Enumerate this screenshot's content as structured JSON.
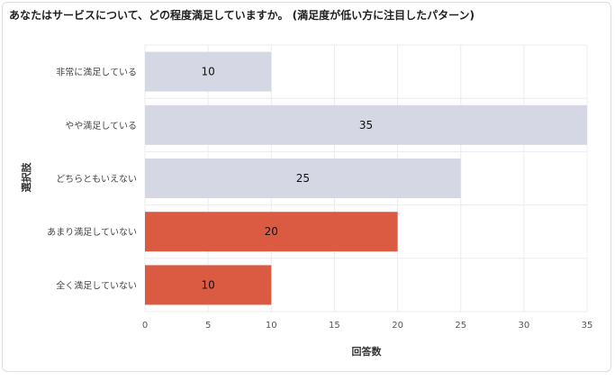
{
  "chart_data": {
    "type": "bar",
    "orientation": "horizontal",
    "title": "あなたはサービスについて、どの程度満足していますか。 (満足度が低い方に注目したパターン)",
    "xlabel": "回答数",
    "ylabel": "選択肢",
    "categories": [
      "非常に満足している",
      "やや満足している",
      "どちらともいえない",
      "あまり満足していない",
      "全く満足していない"
    ],
    "values": [
      10,
      35,
      25,
      20,
      10
    ],
    "colors": [
      "#d5d8e4",
      "#d5d8e4",
      "#d5d8e4",
      "#db5a42",
      "#db5a42"
    ],
    "xlim": [
      0,
      35
    ],
    "xticks": [
      0,
      5,
      10,
      15,
      20,
      25,
      30,
      35
    ],
    "grid": true,
    "legend": "none"
  }
}
